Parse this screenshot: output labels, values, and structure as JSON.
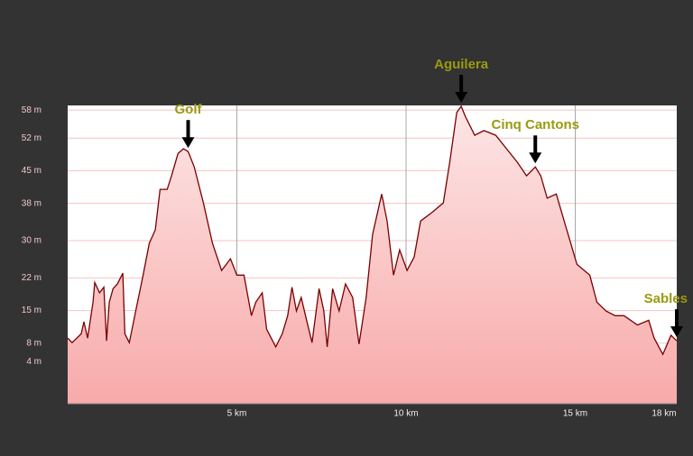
{
  "chart_data": {
    "type": "area",
    "x": [
      0,
      0.13,
      0.4,
      0.48,
      0.59,
      0.75,
      0.8,
      0.94,
      1.07,
      1.15,
      1.23,
      1.34,
      1.47,
      1.63,
      1.69,
      1.82,
      2.01,
      2.23,
      2.41,
      2.59,
      2.73,
      2.94,
      3.07,
      3.26,
      3.42,
      3.56,
      3.74,
      4.01,
      4.28,
      4.55,
      4.81,
      5,
      5.21,
      5.43,
      5.56,
      5.75,
      5.88,
      6.15,
      6.34,
      6.5,
      6.63,
      6.76,
      6.9,
      7.03,
      7.22,
      7.43,
      7.57,
      7.67,
      7.83,
      8.02,
      8.21,
      8.42,
      8.61,
      8.82,
      9.01,
      9.28,
      9.44,
      9.63,
      9.81,
      10.03,
      10.24,
      10.43,
      10.78,
      11.1,
      11.29,
      11.5,
      11.63,
      11.76,
      12.03,
      12.3,
      12.65,
      12.97,
      13.29,
      13.56,
      13.82,
      13.98,
      14.17,
      14.44,
      14.71,
      15.05,
      15.43,
      15.64,
      15.91,
      16.18,
      16.44,
      16.84,
      17.17,
      17.33,
      17.59,
      17.83,
      18
    ],
    "values": [
      9.1,
      8.1,
      10,
      12.6,
      9.1,
      16.8,
      21,
      18.8,
      20,
      8.5,
      16.8,
      19.7,
      20.7,
      23,
      10,
      8.1,
      14.9,
      22.6,
      29.4,
      32.3,
      41,
      41,
      43.9,
      48.7,
      49.7,
      49.1,
      45.8,
      38.1,
      29.4,
      23.6,
      26.1,
      22.6,
      22.6,
      13.9,
      16.8,
      18.8,
      11,
      7.2,
      10,
      13.9,
      20,
      14.9,
      17.8,
      13.9,
      8.1,
      19.7,
      14.9,
      7.2,
      19.7,
      14.9,
      20.7,
      17.8,
      7.8,
      17.8,
      31.3,
      40,
      34.2,
      22.6,
      28,
      23.6,
      26.5,
      34.2,
      36.1,
      38.1,
      46.8,
      57.5,
      58.8,
      56.5,
      52.6,
      53.6,
      52.6,
      49.7,
      46.8,
      43.9,
      45.8,
      43.9,
      39.1,
      40,
      33.3,
      24.9,
      22.6,
      16.8,
      14.9,
      13.9,
      13.9,
      11.9,
      12.9,
      9.1,
      5.6,
      9.7,
      8.5
    ],
    "color": "#7a0000",
    "xlim": [
      0,
      18
    ],
    "xticks": [
      {
        "value": 5,
        "label": "5 km"
      },
      {
        "value": 10,
        "label": "10 km"
      },
      {
        "value": 15,
        "label": "15 km"
      },
      {
        "value": 18,
        "label": "18 km"
      }
    ],
    "ylim": [
      -5,
      59
    ],
    "yticks": [
      {
        "value": 58,
        "label": "58 m"
      },
      {
        "value": 52,
        "label": "52 m"
      },
      {
        "value": 45,
        "label": "45 m"
      },
      {
        "value": 38,
        "label": "38 m"
      },
      {
        "value": 30,
        "label": "30 m"
      },
      {
        "value": 22,
        "label": "22 m"
      },
      {
        "value": 15,
        "label": "15 m"
      },
      {
        "value": 8,
        "label": "8 m"
      },
      {
        "value": 4,
        "label": "4 m"
      }
    ],
    "grid": true,
    "annotations": [
      {
        "text": "Golf",
        "x": 3.56,
        "y": 49.1
      },
      {
        "text": "Aguilera",
        "x": 11.63,
        "y": 58.8
      },
      {
        "text": "Cinq Cantons",
        "x": 13.82,
        "y": 45.8
      },
      {
        "text": "Sables",
        "x": 18,
        "y": 8.5
      }
    ]
  }
}
